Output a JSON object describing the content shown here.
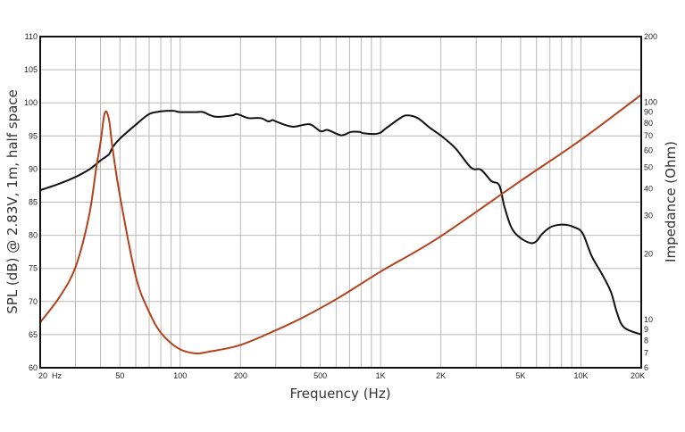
{
  "chart_data": {
    "type": "line",
    "title": "",
    "xlabel": "Frequency (Hz)",
    "ylabel": "SPL (dB) @ 2.83V, 1m, half space",
    "y2label": "Impedance (Ohm)",
    "xscale": "log",
    "xlim": [
      20,
      20000
    ],
    "ylim": [
      60,
      110
    ],
    "y2scale": "log",
    "y2lim": [
      6,
      200
    ],
    "grid": true,
    "x_tick_labels": [
      {
        "value": 20,
        "label": "20  Hz"
      },
      {
        "value": 50,
        "label": "50"
      },
      {
        "value": 100,
        "label": "100"
      },
      {
        "value": 200,
        "label": "200"
      },
      {
        "value": 500,
        "label": "500"
      },
      {
        "value": 1000,
        "label": "1K"
      },
      {
        "value": 2000,
        "label": "2K"
      },
      {
        "value": 5000,
        "label": "5K"
      },
      {
        "value": 10000,
        "label": "10K"
      },
      {
        "value": 20000,
        "label": "20K"
      }
    ],
    "y_ticks": [
      60,
      65,
      70,
      75,
      80,
      85,
      90,
      95,
      100,
      105,
      110
    ],
    "y2_ticks": [
      6,
      7,
      8,
      9,
      10,
      20,
      30,
      40,
      50,
      60,
      70,
      80,
      90,
      100,
      200
    ],
    "series": [
      {
        "name": "SPL",
        "axis": "left",
        "color": "#111111",
        "x": [
          20,
          25,
          30,
          35,
          40,
          44,
          46,
          50,
          60,
          70,
          80,
          92,
          100,
          120,
          130,
          150,
          182,
          192,
          219,
          252,
          275,
          289,
          305,
          362,
          415,
          450,
          503,
          545,
          635,
          711,
          787,
          820,
          935,
          1000,
          1060,
          1240,
          1350,
          1530,
          1750,
          2030,
          2370,
          2830,
          3170,
          3570,
          3920,
          4170,
          4640,
          5700,
          6450,
          7130,
          8290,
          9290,
          10200,
          11300,
          12700,
          14100,
          15100,
          16400,
          20000
        ],
        "y": [
          86.8,
          87.8,
          88.8,
          89.9,
          91.3,
          92.2,
          93.3,
          94.6,
          96.7,
          98.3,
          98.7,
          98.8,
          98.6,
          98.6,
          98.6,
          97.9,
          98.1,
          98.3,
          97.7,
          97.7,
          97.2,
          97.4,
          97.1,
          96.4,
          96.7,
          96.7,
          95.7,
          95.9,
          95.1,
          95.6,
          95.6,
          95.4,
          95.3,
          95.5,
          96.1,
          97.6,
          98.1,
          97.7,
          96.3,
          94.9,
          93.1,
          90.2,
          89.9,
          88.2,
          87.5,
          84.1,
          80.5,
          78.8,
          80.3,
          81.3,
          81.6,
          81.2,
          80.3,
          76.9,
          74.2,
          71.5,
          68.4,
          66.1,
          65.0
        ]
      },
      {
        "name": "Impedance",
        "axis": "right",
        "color": "#b5401a",
        "x": [
          20,
          25,
          30,
          35,
          38,
          40,
          42,
          44,
          46,
          50,
          60,
          70,
          80,
          97,
          117,
          138,
          201,
          306,
          408,
          610,
          1000,
          1950,
          5000,
          10000,
          20000
        ],
        "y": [
          9.7,
          12.7,
          17.4,
          29.7,
          49,
          65,
          89,
          84,
          61,
          37,
          15.8,
          10.8,
          8.7,
          7.4,
          7.0,
          7.1,
          7.65,
          9.0,
          10.2,
          12.5,
          16.6,
          23.8,
          43.4,
          67,
          108
        ]
      }
    ]
  }
}
